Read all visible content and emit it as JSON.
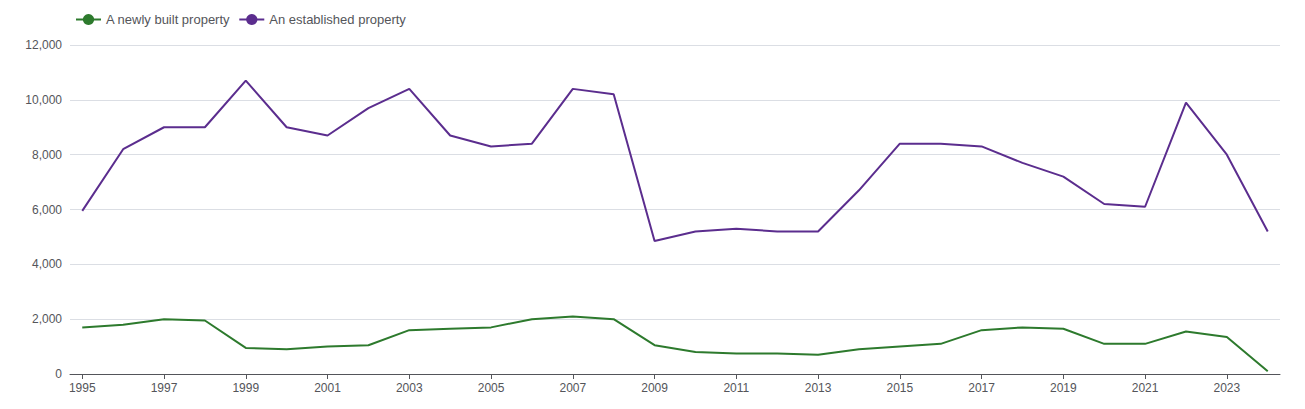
{
  "chart_data": {
    "type": "line",
    "x": [
      1995,
      1996,
      1997,
      1998,
      1999,
      2000,
      2001,
      2002,
      2003,
      2004,
      2005,
      2006,
      2007,
      2008,
      2009,
      2010,
      2011,
      2012,
      2013,
      2014,
      2015,
      2016,
      2017,
      2018,
      2019,
      2020,
      2021,
      2022,
      2023,
      2024
    ],
    "series": [
      {
        "name": "A newly built property",
        "color": "#2d7a2d",
        "values": [
          1700,
          1800,
          2000,
          1950,
          950,
          900,
          1000,
          1050,
          1600,
          1650,
          1700,
          2000,
          2100,
          2000,
          1050,
          800,
          750,
          750,
          700,
          900,
          1000,
          1100,
          1600,
          1700,
          1650,
          1100,
          1100,
          1550,
          1350,
          100
        ]
      },
      {
        "name": "An established property",
        "color": "#5b2d8e",
        "values": [
          5950,
          8200,
          9000,
          9000,
          10700,
          9000,
          8700,
          9700,
          10400,
          8700,
          8300,
          8400,
          10400,
          10200,
          4850,
          5200,
          5300,
          5200,
          5200,
          6700,
          8400,
          8400,
          8300,
          7700,
          7200,
          6200,
          6100,
          9900,
          8000,
          5200
        ]
      }
    ],
    "xlim": [
      1994.7,
      2024.3
    ],
    "xticks": [
      1995,
      1997,
      1999,
      2001,
      2003,
      2005,
      2007,
      2009,
      2011,
      2013,
      2015,
      2017,
      2019,
      2021,
      2023
    ],
    "ylim": [
      0,
      12000
    ],
    "yticks": [
      0,
      {
        "value": 2000,
        "label": "2,000"
      },
      {
        "value": 4000,
        "label": "4,000"
      },
      {
        "value": 6000,
        "label": "6,000"
      },
      {
        "value": 8000,
        "label": "8,000"
      },
      {
        "value": 10000,
        "label": "10,000"
      },
      {
        "value": 12000,
        "label": "12,000"
      }
    ],
    "grid": true,
    "legend": "upper left"
  }
}
